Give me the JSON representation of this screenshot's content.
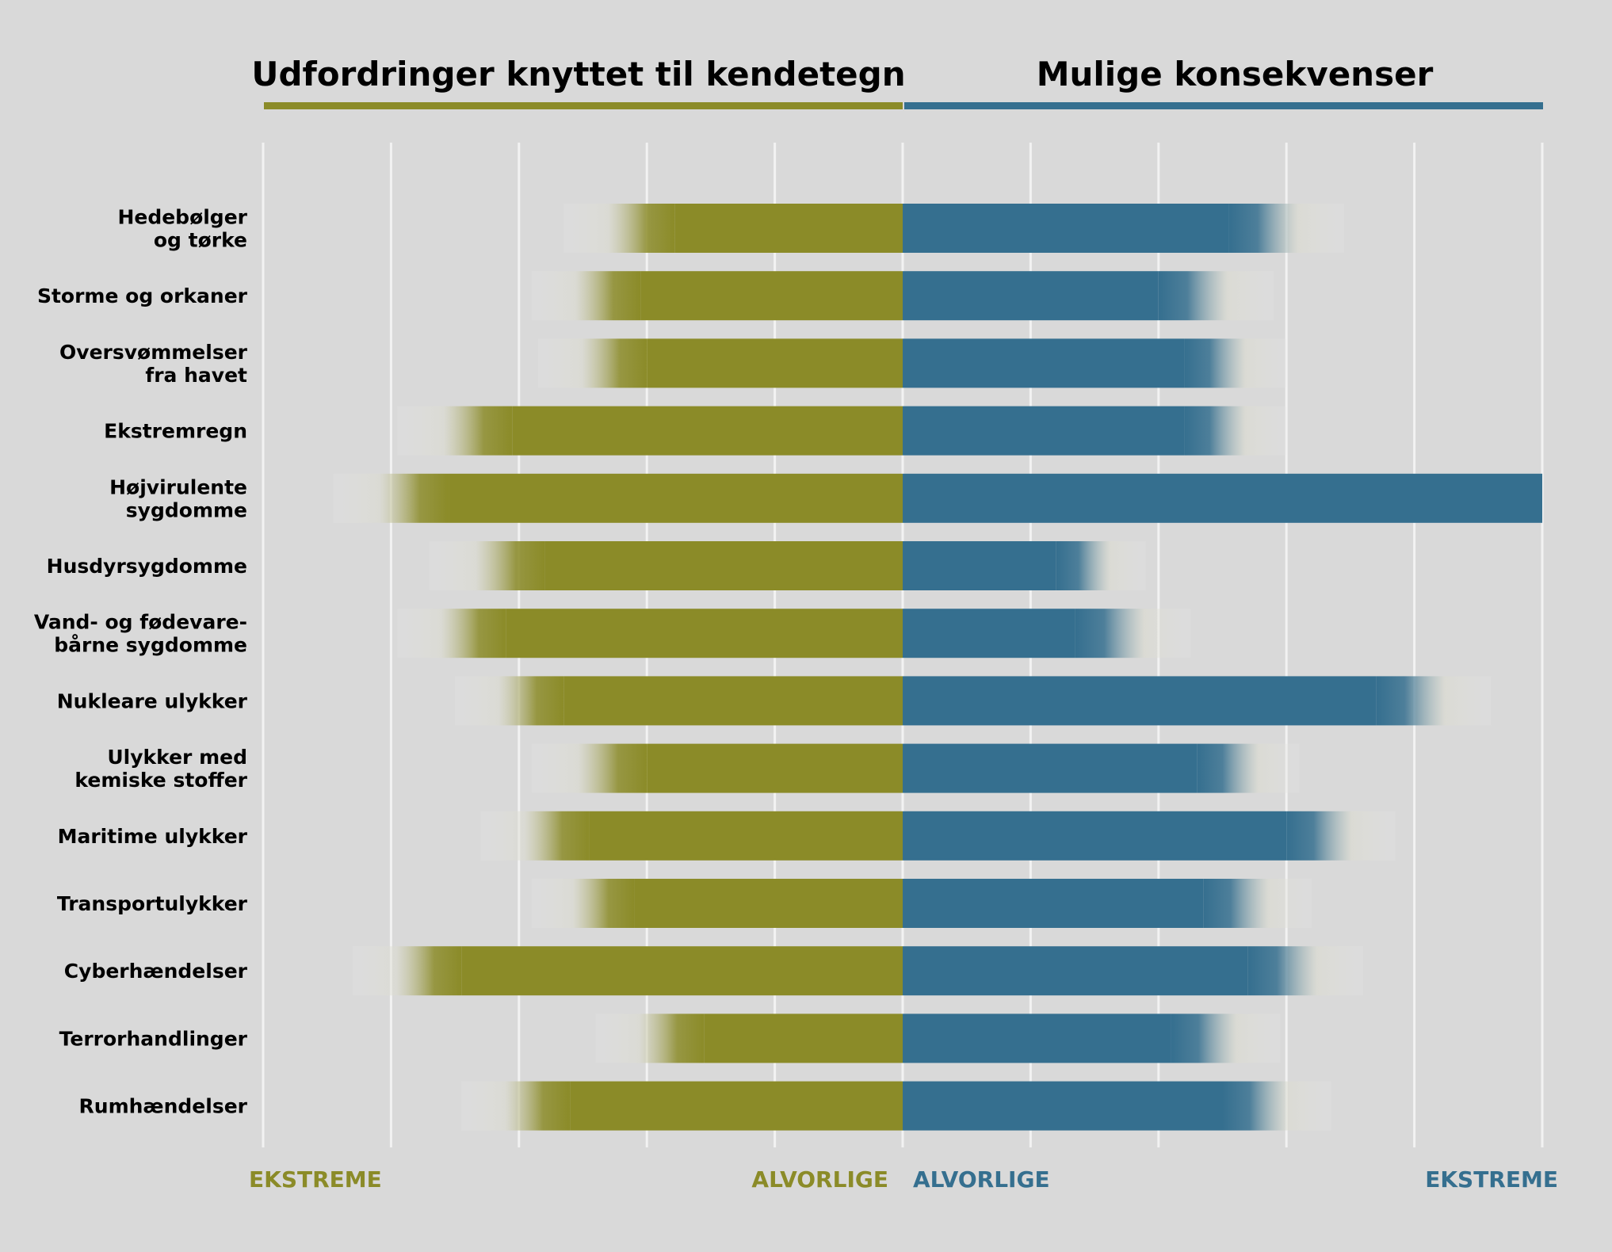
{
  "chart_data": {
    "type": "bar",
    "left_title": "Udfordringer knyttet til kendetegn",
    "right_title": "Mulige konsekvenser",
    "axis_labels": {
      "left_extreme": "EKSTREME",
      "left_serious": "ALVORLIGE",
      "right_serious": "ALVORLIGE",
      "right_extreme": "EKSTREME"
    },
    "xlim_left": [
      0,
      5
    ],
    "xlim_right": [
      0,
      5
    ],
    "grid": true,
    "categories": [
      "Hedebølger\nog tørke",
      "Storme og orkaner",
      "Oversvømmelser\nfra havet",
      "Ekstremregn",
      "Højvirulente\nsygdomme",
      "Husdyrsygdomme",
      "Vand- og fødevare-\nbårne sygdomme",
      "Nukleare ulykker",
      "Ulykker med\nkemiske stoffer",
      "Maritime ulykker",
      "Transportulykker",
      "Cyberhændelser",
      "Terrorhandlinger",
      "Rumhændelser"
    ],
    "series": [
      {
        "name": "Udfordringer knyttet til kendetegn",
        "color": "#8b8b28",
        "solid": [
          1.78,
          2.05,
          2.0,
          3.05,
          3.55,
          2.8,
          3.1,
          2.65,
          2.0,
          2.45,
          2.1,
          3.45,
          1.55,
          2.6
        ],
        "fade": [
          2.65,
          2.9,
          2.85,
          3.95,
          4.45,
          3.7,
          3.95,
          3.5,
          2.9,
          3.3,
          2.9,
          4.3,
          2.4,
          3.45
        ]
      },
      {
        "name": "Mulige konsekvenser",
        "color": "#356f8f",
        "solid": [
          2.55,
          2.0,
          2.2,
          2.2,
          5.0,
          1.2,
          1.35,
          3.7,
          2.3,
          3.0,
          2.35,
          2.7,
          2.1,
          2.5
        ],
        "fade": [
          3.45,
          2.9,
          3.0,
          3.0,
          5.0,
          1.9,
          2.25,
          4.6,
          3.1,
          3.85,
          3.2,
          3.6,
          2.95,
          3.35
        ]
      }
    ]
  }
}
